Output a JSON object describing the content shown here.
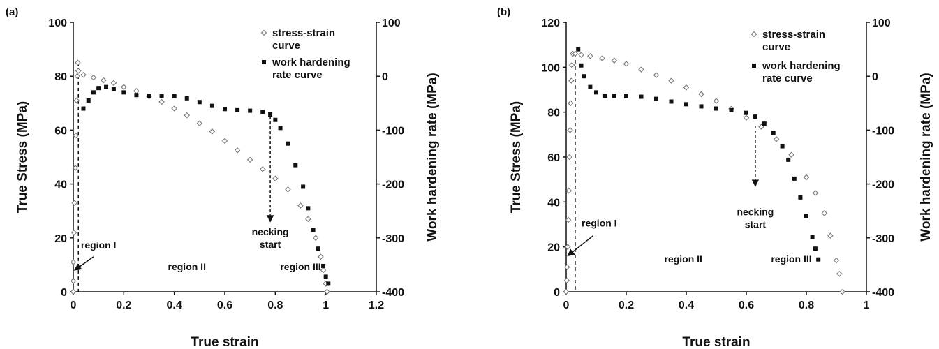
{
  "chart_data": [
    {
      "panel": "(a)",
      "type": "scatter",
      "xlabel": "True strain",
      "ylabel": "True Stress (MPa)",
      "y2label": "Work hardening rate (MPa)",
      "xlim": [
        0,
        1.2
      ],
      "ylim": [
        0,
        100
      ],
      "y2lim": [
        -400,
        100
      ],
      "xticks": [
        "0",
        "0.2",
        "0.4",
        "0.6",
        "0.8",
        "1",
        "1.2"
      ],
      "yticks": [
        "0",
        "20",
        "40",
        "60",
        "80",
        "100"
      ],
      "y2ticks": [
        "-400",
        "-300",
        "-200",
        "-100",
        "0",
        "100"
      ],
      "grid": false,
      "legend": "top-right",
      "series": [
        {
          "name": "stress-strain curve",
          "axis": "left",
          "marker": "open-diamond",
          "points": [
            [
              0,
              0
            ],
            [
              0,
              4
            ],
            [
              0,
              11
            ],
            [
              0.003,
              22
            ],
            [
              0.005,
              33
            ],
            [
              0.008,
              46
            ],
            [
              0.01,
              58
            ],
            [
              0.013,
              71
            ],
            [
              0.016,
              80
            ],
            [
              0.018,
              85
            ],
            [
              0.02,
              82
            ],
            [
              0.04,
              80.5
            ],
            [
              0.08,
              79.5
            ],
            [
              0.12,
              78.5
            ],
            [
              0.16,
              77.5
            ],
            [
              0.2,
              76
            ],
            [
              0.25,
              74.5
            ],
            [
              0.3,
              72.5
            ],
            [
              0.35,
              70.5
            ],
            [
              0.4,
              68
            ],
            [
              0.45,
              65.5
            ],
            [
              0.5,
              62.5
            ],
            [
              0.55,
              59.5
            ],
            [
              0.6,
              56
            ],
            [
              0.65,
              52.5
            ],
            [
              0.7,
              49
            ],
            [
              0.75,
              45.5
            ],
            [
              0.8,
              42
            ],
            [
              0.85,
              38
            ],
            [
              0.9,
              32
            ],
            [
              0.93,
              27
            ],
            [
              0.96,
              20
            ],
            [
              0.98,
              13
            ],
            [
              0.99,
              8
            ],
            [
              1.0,
              3
            ],
            [
              1.005,
              0
            ]
          ]
        },
        {
          "name": "work hardening rate curve",
          "axis": "right",
          "marker": "filled-square",
          "points": [
            [
              0.04,
              -60
            ],
            [
              0.06,
              -45
            ],
            [
              0.08,
              -30
            ],
            [
              0.1,
              -22
            ],
            [
              0.13,
              -20
            ],
            [
              0.16,
              -24
            ],
            [
              0.2,
              -30
            ],
            [
              0.25,
              -35
            ],
            [
              0.3,
              -36
            ],
            [
              0.35,
              -37
            ],
            [
              0.4,
              -37
            ],
            [
              0.45,
              -41
            ],
            [
              0.5,
              -48
            ],
            [
              0.55,
              -55
            ],
            [
              0.6,
              -61
            ],
            [
              0.65,
              -63
            ],
            [
              0.7,
              -64
            ],
            [
              0.75,
              -66
            ],
            [
              0.78,
              -71
            ],
            [
              0.8,
              -81
            ],
            [
              0.82,
              -96
            ],
            [
              0.85,
              -125
            ],
            [
              0.88,
              -165
            ],
            [
              0.91,
              -205
            ],
            [
              0.93,
              -245
            ],
            [
              0.95,
              -285
            ],
            [
              0.97,
              -320
            ],
            [
              0.99,
              -352
            ],
            [
              1.0,
              -372
            ],
            [
              1.01,
              -385
            ]
          ]
        }
      ],
      "legend_entries": [
        {
          "line1": "stress-strain",
          "line2": "curve"
        },
        {
          "line1": "work hardening",
          "line2": "rate curve"
        }
      ],
      "annotations": [
        {
          "lines": [
            "region I"
          ],
          "x": 0.1,
          "y": 16
        },
        {
          "lines": [
            "region II"
          ],
          "x": 0.45,
          "y": 8
        },
        {
          "lines": [
            "region III"
          ],
          "x": 0.9,
          "y": 8
        },
        {
          "lines": [
            "necking",
            "start"
          ],
          "x": 0.78,
          "y": 21
        }
      ],
      "region1_arrow": {
        "from": [
          0.08,
          13
        ],
        "to": [
          0.005,
          8
        ]
      },
      "necking_arrow": {
        "x": 0.78,
        "from_y": 65,
        "to_y": 26
      },
      "dashed_line_x": 0.02
    },
    {
      "panel": "(b)",
      "type": "scatter",
      "xlabel": "True strain",
      "ylabel": "True Stress (MPa)",
      "y2label": "Work hardening rate (MPa)",
      "xlim": [
        0,
        1
      ],
      "ylim": [
        0,
        120
      ],
      "y2lim": [
        -400,
        100
      ],
      "xticks": [
        "0",
        "0.2",
        "0.4",
        "0.6",
        "0.8",
        "1"
      ],
      "yticks": [
        "0",
        "20",
        "40",
        "60",
        "80",
        "100",
        "120"
      ],
      "y2ticks": [
        "-400",
        "-300",
        "-200",
        "-100",
        "0",
        "100"
      ],
      "grid": false,
      "legend": "top-right",
      "series": [
        {
          "name": "stress-strain curve",
          "axis": "left",
          "marker": "open-diamond",
          "points": [
            [
              0,
              0
            ],
            [
              0.002,
              5
            ],
            [
              0.003,
              11
            ],
            [
              0.005,
              20
            ],
            [
              0.007,
              32
            ],
            [
              0.009,
              45
            ],
            [
              0.011,
              60
            ],
            [
              0.013,
              72
            ],
            [
              0.015,
              84
            ],
            [
              0.017,
              94
            ],
            [
              0.019,
              101
            ],
            [
              0.022,
              106
            ],
            [
              0.03,
              106
            ],
            [
              0.05,
              105.5
            ],
            [
              0.08,
              105
            ],
            [
              0.12,
              104
            ],
            [
              0.16,
              103
            ],
            [
              0.2,
              101.5
            ],
            [
              0.25,
              99
            ],
            [
              0.3,
              96.5
            ],
            [
              0.35,
              94
            ],
            [
              0.4,
              91
            ],
            [
              0.45,
              88
            ],
            [
              0.5,
              85
            ],
            [
              0.55,
              81.5
            ],
            [
              0.6,
              77.5
            ],
            [
              0.65,
              73.5
            ],
            [
              0.7,
              68
            ],
            [
              0.75,
              61
            ],
            [
              0.8,
              51
            ],
            [
              0.83,
              44
            ],
            [
              0.86,
              35
            ],
            [
              0.88,
              25
            ],
            [
              0.9,
              14
            ],
            [
              0.91,
              8
            ],
            [
              0.92,
              0
            ]
          ]
        },
        {
          "name": "work hardening rate curve",
          "axis": "right",
          "marker": "filled-square",
          "points": [
            [
              0.04,
              50
            ],
            [
              0.05,
              20
            ],
            [
              0.06,
              0
            ],
            [
              0.08,
              -20
            ],
            [
              0.1,
              -30
            ],
            [
              0.13,
              -36
            ],
            [
              0.16,
              -37
            ],
            [
              0.2,
              -37
            ],
            [
              0.25,
              -38
            ],
            [
              0.3,
              -42
            ],
            [
              0.35,
              -47
            ],
            [
              0.4,
              -52
            ],
            [
              0.45,
              -56
            ],
            [
              0.5,
              -60
            ],
            [
              0.55,
              -63
            ],
            [
              0.6,
              -68
            ],
            [
              0.63,
              -75
            ],
            [
              0.66,
              -88
            ],
            [
              0.69,
              -105
            ],
            [
              0.72,
              -130
            ],
            [
              0.74,
              -155
            ],
            [
              0.76,
              -190
            ],
            [
              0.78,
              -225
            ],
            [
              0.8,
              -260
            ],
            [
              0.82,
              -298
            ],
            [
              0.83,
              -320
            ],
            [
              0.84,
              -340
            ]
          ]
        }
      ],
      "legend_entries": [
        {
          "line1": "stress-strain",
          "line2": "curve"
        },
        {
          "line1": "work hardening",
          "line2": "rate curve"
        }
      ],
      "annotations": [
        {
          "lines": [
            "region I"
          ],
          "x": 0.11,
          "y": 29
        },
        {
          "lines": [
            "region II"
          ],
          "x": 0.39,
          "y": 13
        },
        {
          "lines": [
            "region III"
          ],
          "x": 0.75,
          "y": 13
        },
        {
          "lines": [
            "necking",
            "start"
          ],
          "x": 0.63,
          "y": 34
        }
      ],
      "region1_arrow": {
        "from": [
          0.09,
          25
        ],
        "to": [
          0.005,
          16
        ]
      },
      "necking_arrow": {
        "x": 0.63,
        "from_y": 74,
        "to_y": 47
      },
      "dashed_line_x": 0.03
    }
  ]
}
